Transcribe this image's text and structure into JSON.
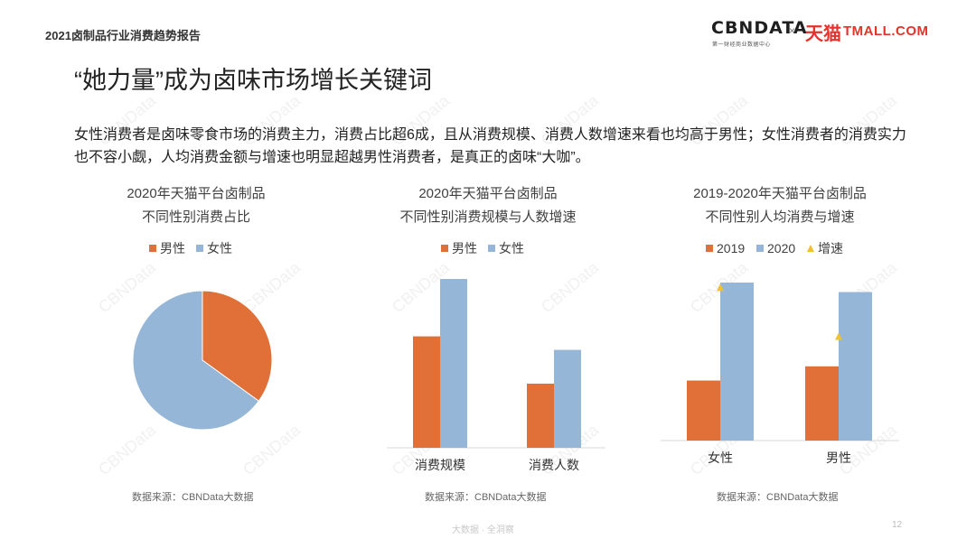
{
  "header": {
    "report_title": "2021卤制品行业消费趋势报告",
    "logo_cbn": "CBNDATA",
    "logo_cbn_sub": "第一财经商业数据中心",
    "logo_x": "×",
    "logo_tmall": "天猫",
    "logo_tmall_en": "TMALL.COM"
  },
  "title": "“她力量”成为卤味市场增长关键词",
  "description": "女性消费者是卤味零食市场的消费主力，消费占比超6成，且从消费规模、消费人数增速来看也均高于男性；女性消费者的消费实力也不容小觑，人均消费金额与增速也明显超越男性消费者，是真正的卤味“大咖”。",
  "watermark": "CBNData",
  "colors": {
    "orange": "#e07038",
    "blue": "#95b6d6",
    "gold": "#f2c12e"
  },
  "charts": [
    {
      "title_line1": "2020年天猫平台卤制品",
      "title_line2": "不同性别消费占比",
      "legend": [
        "男性",
        "女性"
      ],
      "source": "数据来源：CBNData大数据"
    },
    {
      "title_line1": "2020年天猫平台卤制品",
      "title_line2": "不同性别消费规模与人数增速",
      "legend": [
        "男性",
        "女性"
      ],
      "source": "数据来源：CBNData大数据"
    },
    {
      "title_line1": "2019-2020年天猫平台卤制品",
      "title_line2": "不同性别人均消费与增速",
      "legend": [
        "2019",
        "2020",
        "增速"
      ],
      "source": "数据来源：CBNData大数据"
    }
  ],
  "chart_data": [
    {
      "type": "pie",
      "title": "2020年天猫平台卤制品不同性别消费占比",
      "labels": [
        "男性",
        "女性"
      ],
      "values": [
        35,
        65
      ],
      "colors": [
        "#e07038",
        "#95b6d6"
      ],
      "legend": "top"
    },
    {
      "type": "bar",
      "title": "2020年天猫平台卤制品不同性别消费规模与人数增速",
      "categories": [
        "消费规模",
        "消费人数"
      ],
      "series": [
        {
          "name": "男性",
          "values": [
            66,
            38
          ],
          "color": "#e07038"
        },
        {
          "name": "女性",
          "values": [
            100,
            58
          ],
          "color": "#95b6d6"
        }
      ],
      "ylim": [
        0,
        100
      ],
      "legend": "top"
    },
    {
      "type": "bar",
      "title": "2019-2020年天猫平台卤制品不同性别人均消费与增速",
      "categories": [
        "女性",
        "男性"
      ],
      "series": [
        {
          "name": "2019",
          "values": [
            38,
            47
          ],
          "color": "#e07038"
        },
        {
          "name": "2020",
          "values": [
            100,
            94
          ],
          "color": "#95b6d6"
        },
        {
          "name": "增速",
          "values": [
            97,
            66
          ],
          "color": "#f2c12e",
          "marker": "triangle"
        }
      ],
      "ylim": [
        0,
        100
      ],
      "legend": "top"
    }
  ],
  "footer": {
    "text": "大数据 · 全洞察",
    "page_number": "12"
  }
}
